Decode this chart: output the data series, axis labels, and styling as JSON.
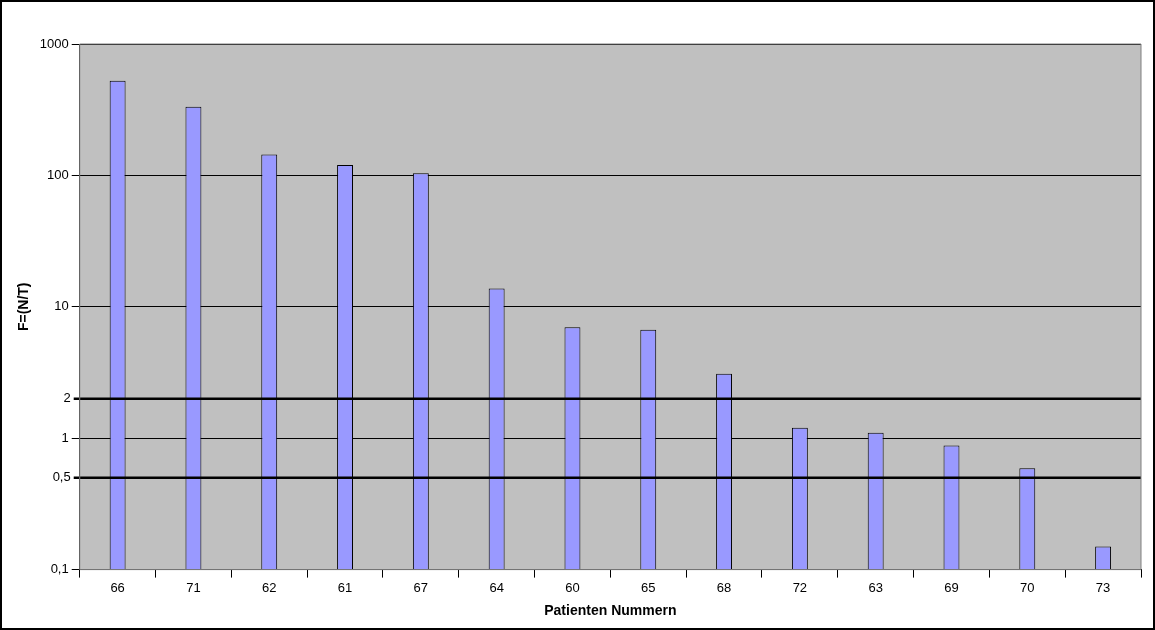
{
  "chart_data": {
    "type": "bar",
    "xlabel": "Patienten Nummern",
    "ylabel": "F=(N/T)",
    "categories": [
      "66",
      "71",
      "62",
      "61",
      "67",
      "64",
      "60",
      "65",
      "68",
      "72",
      "63",
      "69",
      "70",
      "73"
    ],
    "values": [
      525,
      333,
      144,
      120,
      104,
      13.8,
      7.0,
      6.7,
      3.1,
      1.2,
      1.1,
      0.88,
      0.59,
      0.15
    ],
    "color": "#9999ff",
    "log": "y",
    "ylim": [
      0.1,
      1000
    ],
    "yticks": [
      {
        "value": 0.1,
        "label": "0,1"
      },
      1,
      10,
      100,
      1000
    ],
    "grid": "y",
    "ref_lines": [
      {
        "axis": "y",
        "value": 2,
        "label": "2",
        "color": "#000000"
      },
      {
        "axis": "y",
        "value": 0.5,
        "label": "0,5",
        "color": "#000000"
      }
    ]
  }
}
